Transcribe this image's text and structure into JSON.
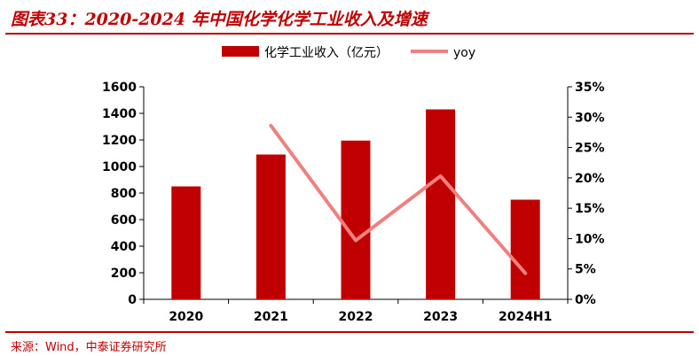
{
  "figure": {
    "title": "图表33：2020-2024 年中国化学化学工业收入及增速",
    "source": "来源：Wind，中泰证券研究所"
  },
  "chart_data": {
    "type": "bar",
    "categories": [
      "2020",
      "2021",
      "2022",
      "2023",
      "2024H1"
    ],
    "series": [
      {
        "name": "化学工业收入（亿元）",
        "type": "bar",
        "axis": "left",
        "color": "#c00000",
        "values": [
          850,
          1090,
          1195,
          1430,
          750
        ]
      },
      {
        "name": "yoy",
        "type": "line",
        "axis": "right",
        "color": "#f08080",
        "values": [
          null,
          28.6,
          9.7,
          20.3,
          4.3
        ]
      }
    ],
    "y_left": {
      "min": 0,
      "max": 1600,
      "step": 200,
      "tick_labels": [
        "0",
        "200",
        "400",
        "600",
        "800",
        "1000",
        "1200",
        "1400",
        "1600"
      ]
    },
    "y_right": {
      "min": 0,
      "max": 35,
      "step": 5,
      "tick_labels": [
        "0%",
        "5%",
        "10%",
        "15%",
        "20%",
        "25%",
        "30%",
        "35%"
      ]
    },
    "legend_position": "top",
    "grid": false
  }
}
